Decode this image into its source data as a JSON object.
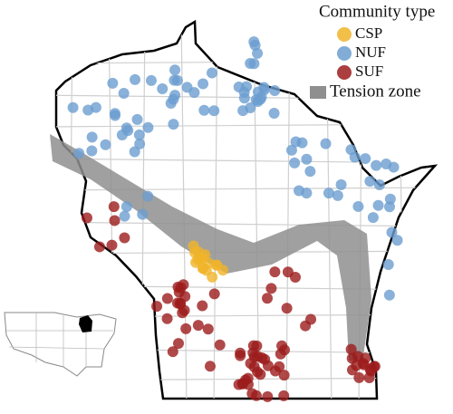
{
  "legend": {
    "title": "Community type",
    "items": [
      {
        "label": "CSP",
        "color": "#f0b429"
      },
      {
        "label": "NUF",
        "color": "#6b9dcf"
      },
      {
        "label": "SUF",
        "color": "#9c1c1c"
      }
    ],
    "zone": {
      "label": "Tension zone",
      "color": "#8f8f8f"
    }
  }
}
